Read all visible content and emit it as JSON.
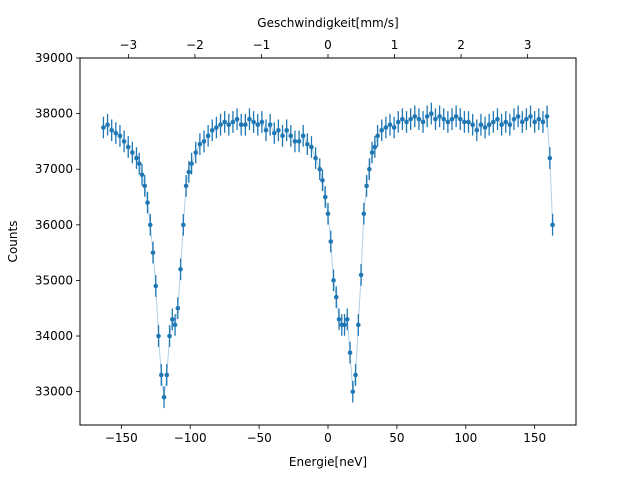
{
  "chart_data": {
    "type": "scatter",
    "xlabel": "Energie[neV]",
    "ylabel": "Counts",
    "top_xlabel": "Geschwindigkeit[mm/s]",
    "xlim": [
      -180,
      180
    ],
    "ylim": [
      32400,
      39000
    ],
    "xticks": [
      -150,
      -100,
      -50,
      0,
      50,
      100,
      150
    ],
    "xtick_labels": [
      "−150",
      "−100",
      "−50",
      "0",
      "50",
      "100",
      "150"
    ],
    "yticks": [
      33000,
      34000,
      35000,
      36000,
      37000,
      38000,
      39000
    ],
    "ytick_labels": [
      "33000",
      "34000",
      "35000",
      "36000",
      "37000",
      "38000",
      "39000"
    ],
    "top_xticks": [
      -3,
      -2,
      -1,
      0,
      1,
      2,
      3
    ],
    "top_xtick_labels": [
      "−3",
      "−2",
      "−1",
      "0",
      "1",
      "2",
      "3"
    ],
    "top_scale_neV_per_mm_s": 48.3,
    "color": "#1f77b4",
    "error_bar": 195,
    "grid": false,
    "series": [
      {
        "x": [
          -163,
          -160,
          -157,
          -154,
          -151,
          -148,
          -145,
          -142,
          -139,
          -137,
          -135,
          -133,
          -131,
          -129,
          -127,
          -125,
          -123,
          -121,
          -119,
          -117,
          -115,
          -113,
          -111,
          -109,
          -107,
          -105,
          -103,
          -101,
          -99,
          -96,
          -93,
          -90,
          -87,
          -84,
          -81,
          -78,
          -75,
          -72,
          -69,
          -66,
          -63,
          -60,
          -57,
          -54,
          -51,
          -48,
          -45,
          -42,
          -39,
          -36,
          -33,
          -30,
          -27,
          -24,
          -21,
          -18,
          -15,
          -12,
          -9,
          -6,
          -4,
          -2,
          0,
          2,
          4,
          6,
          8,
          10,
          12,
          14,
          16,
          18,
          20,
          22,
          24,
          26,
          28,
          30,
          32,
          34,
          36,
          39,
          42,
          45,
          48,
          51,
          54,
          57,
          60,
          63,
          66,
          69,
          72,
          75,
          78,
          81,
          84,
          87,
          90,
          93,
          96,
          99,
          102,
          105,
          108,
          111,
          114,
          117,
          120,
          123,
          126,
          129,
          132,
          135,
          138,
          141,
          144,
          147,
          150,
          153,
          156,
          159,
          161,
          163
        ],
        "y": [
          37750,
          37800,
          37700,
          37650,
          37600,
          37500,
          37400,
          37300,
          37200,
          37100,
          36900,
          36700,
          36400,
          36000,
          35500,
          34900,
          34000,
          33300,
          32900,
          33300,
          34000,
          34300,
          34200,
          34500,
          35200,
          36000,
          36700,
          36950,
          37100,
          37300,
          37450,
          37500,
          37600,
          37700,
          37750,
          37800,
          37850,
          37800,
          37850,
          37900,
          37800,
          37800,
          37900,
          37850,
          37800,
          37850,
          37700,
          37800,
          37650,
          37700,
          37600,
          37700,
          37600,
          37500,
          37500,
          37600,
          37450,
          37400,
          37200,
          37000,
          36800,
          36500,
          36200,
          35700,
          35000,
          34700,
          34300,
          34200,
          34200,
          34300,
          33700,
          33000,
          33300,
          34200,
          35100,
          36200,
          36700,
          37000,
          37300,
          37400,
          37600,
          37700,
          37750,
          37800,
          37750,
          37850,
          37900,
          37850,
          37900,
          37950,
          37900,
          37850,
          37950,
          38000,
          37900,
          37950,
          37900,
          37850,
          37900,
          37950,
          37900,
          37850,
          37850,
          37800,
          37700,
          37800,
          37750,
          37800,
          37850,
          37900,
          37800,
          37850,
          37800,
          37900,
          37950,
          37850,
          37900,
          37950,
          37850,
          37900,
          37850,
          37950,
          37200,
          36000
        ]
      }
    ]
  }
}
